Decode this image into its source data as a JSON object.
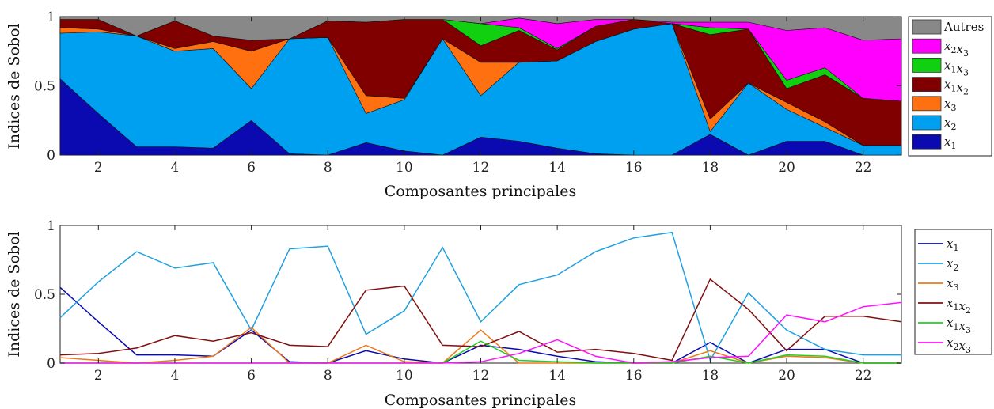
{
  "chart_data": [
    {
      "type": "area",
      "stacked": true,
      "xlabel": "Composantes principales",
      "ylabel": "Indices de Sobol",
      "xlim": [
        1,
        23
      ],
      "ylim": [
        0,
        1
      ],
      "xticks": [
        2,
        4,
        6,
        8,
        10,
        12,
        14,
        16,
        18,
        20,
        22
      ],
      "yticks": [
        0,
        0.5,
        1
      ],
      "ytick_labels": [
        "0",
        "0.5",
        "1"
      ],
      "legend_position": "right",
      "x": [
        1,
        2,
        3,
        4,
        5,
        6,
        7,
        8,
        9,
        10,
        11,
        12,
        13,
        14,
        15,
        16,
        17,
        18,
        19,
        20,
        21,
        22,
        23
      ],
      "series": [
        {
          "name": "x1",
          "label_tex": [
            "x",
            "1"
          ],
          "color": "#0a0ab0",
          "values": [
            0.55,
            0.3,
            0.06,
            0.06,
            0.05,
            0.25,
            0.01,
            0.0,
            0.09,
            0.03,
            0.0,
            0.13,
            0.1,
            0.05,
            0.01,
            0.0,
            0.0,
            0.15,
            0.0,
            0.1,
            0.1,
            0.0,
            0.0
          ]
        },
        {
          "name": "x2",
          "label_tex": [
            "x",
            "2"
          ],
          "color": "#00a0f0",
          "values": [
            0.33,
            0.59,
            0.8,
            0.69,
            0.72,
            0.23,
            0.83,
            0.85,
            0.21,
            0.37,
            0.84,
            0.3,
            0.57,
            0.63,
            0.81,
            0.91,
            0.95,
            0.02,
            0.52,
            0.23,
            0.1,
            0.07,
            0.07
          ]
        },
        {
          "name": "x3",
          "label_tex": [
            "x",
            "3"
          ],
          "color": "#ff7010",
          "values": [
            0.04,
            0.02,
            0.0,
            0.02,
            0.05,
            0.27,
            0.0,
            0.0,
            0.13,
            0.01,
            0.0,
            0.24,
            0.0,
            0.0,
            0.0,
            0.0,
            0.0,
            0.09,
            0.0,
            0.05,
            0.04,
            0.0,
            0.0
          ]
        },
        {
          "name": "x1x2",
          "label_tex": [
            "x",
            "1",
            "x",
            "2"
          ],
          "color": "#800000",
          "values": [
            0.06,
            0.07,
            0.0,
            0.2,
            0.04,
            0.08,
            0.0,
            0.12,
            0.53,
            0.57,
            0.14,
            0.12,
            0.23,
            0.08,
            0.11,
            0.07,
            0.0,
            0.61,
            0.39,
            0.1,
            0.34,
            0.34,
            0.32
          ]
        },
        {
          "name": "x1x3",
          "label_tex": [
            "x",
            "1",
            "x",
            "3"
          ],
          "color": "#10d010",
          "values": [
            0.0,
            0.0,
            0.0,
            0.0,
            0.0,
            0.0,
            0.0,
            0.0,
            0.0,
            0.0,
            0.0,
            0.16,
            0.02,
            0.01,
            0.0,
            0.0,
            0.0,
            0.05,
            0.0,
            0.06,
            0.05,
            0.0,
            0.0
          ]
        },
        {
          "name": "x2x3",
          "label_tex": [
            "x",
            "2",
            "x",
            "3"
          ],
          "color": "#ff00ff",
          "values": [
            0.0,
            0.0,
            0.0,
            0.0,
            0.0,
            0.0,
            0.0,
            0.0,
            0.0,
            0.0,
            0.0,
            0.0,
            0.07,
            0.18,
            0.05,
            0.0,
            0.01,
            0.04,
            0.05,
            0.36,
            0.29,
            0.42,
            0.45
          ]
        },
        {
          "name": "Autres",
          "label_tex": [
            "Autres"
          ],
          "color": "#888888",
          "values": [
            0.02,
            0.02,
            0.14,
            0.03,
            0.14,
            0.17,
            0.16,
            0.03,
            0.04,
            0.02,
            0.02,
            0.05,
            0.08,
            0.05,
            0.02,
            0.02,
            0.04,
            0.04,
            0.04,
            0.1,
            0.08,
            0.17,
            0.16
          ]
        }
      ]
    },
    {
      "type": "line",
      "xlabel": "Composantes principales",
      "ylabel": "Indices de Sobol",
      "xlim": [
        1,
        23
      ],
      "ylim": [
        0,
        1
      ],
      "xticks": [
        2,
        4,
        6,
        8,
        10,
        12,
        14,
        16,
        18,
        20,
        22
      ],
      "yticks": [
        0,
        0.5,
        1
      ],
      "ytick_labels": [
        "0",
        "0.5",
        "1"
      ],
      "legend_position": "right",
      "x": [
        1,
        2,
        3,
        4,
        5,
        6,
        7,
        8,
        9,
        10,
        11,
        12,
        13,
        14,
        15,
        16,
        17,
        18,
        19,
        20,
        21,
        22,
        23
      ],
      "series": [
        {
          "name": "x1",
          "label_tex": [
            "x",
            "1"
          ],
          "color": "#0a0ab0",
          "values": [
            0.55,
            0.3,
            0.06,
            0.06,
            0.05,
            0.24,
            0.01,
            0.0,
            0.09,
            0.03,
            0.0,
            0.13,
            0.1,
            0.05,
            0.01,
            0.0,
            0.0,
            0.15,
            0.0,
            0.1,
            0.1,
            0.0,
            0.0
          ]
        },
        {
          "name": "x2",
          "label_tex": [
            "x",
            "2"
          ],
          "color": "#20a0e0",
          "values": [
            0.33,
            0.59,
            0.81,
            0.69,
            0.73,
            0.24,
            0.83,
            0.85,
            0.21,
            0.38,
            0.84,
            0.3,
            0.57,
            0.64,
            0.81,
            0.91,
            0.95,
            0.02,
            0.51,
            0.24,
            0.1,
            0.06,
            0.06
          ]
        },
        {
          "name": "x3",
          "label_tex": [
            "x",
            "3"
          ],
          "color": "#f07818",
          "values": [
            0.04,
            0.02,
            0.0,
            0.02,
            0.05,
            0.26,
            0.0,
            0.0,
            0.13,
            0.01,
            0.0,
            0.24,
            0.0,
            0.0,
            0.0,
            0.0,
            0.0,
            0.09,
            0.0,
            0.05,
            0.04,
            0.0,
            0.0
          ]
        },
        {
          "name": "x1x2",
          "label_tex": [
            "x",
            "1",
            "x",
            "2"
          ],
          "color": "#801010",
          "values": [
            0.06,
            0.07,
            0.11,
            0.2,
            0.16,
            0.22,
            0.13,
            0.12,
            0.53,
            0.56,
            0.13,
            0.12,
            0.23,
            0.08,
            0.1,
            0.07,
            0.02,
            0.61,
            0.39,
            0.09,
            0.34,
            0.34,
            0.3
          ]
        },
        {
          "name": "x1x3",
          "label_tex": [
            "x",
            "1",
            "x",
            "3"
          ],
          "color": "#20d020",
          "values": [
            0.0,
            0.0,
            0.0,
            0.0,
            0.0,
            0.0,
            0.0,
            0.0,
            0.0,
            0.0,
            0.0,
            0.16,
            0.02,
            0.01,
            0.0,
            0.0,
            0.0,
            0.05,
            0.0,
            0.06,
            0.05,
            0.0,
            0.0
          ]
        },
        {
          "name": "x2x3",
          "label_tex": [
            "x",
            "2",
            "x",
            "3"
          ],
          "color": "#ff10ff",
          "values": [
            0.0,
            0.0,
            0.0,
            0.0,
            0.0,
            0.0,
            0.0,
            0.0,
            0.0,
            0.0,
            0.0,
            0.01,
            0.07,
            0.17,
            0.05,
            0.0,
            0.01,
            0.04,
            0.05,
            0.35,
            0.3,
            0.41,
            0.44
          ]
        }
      ]
    }
  ]
}
